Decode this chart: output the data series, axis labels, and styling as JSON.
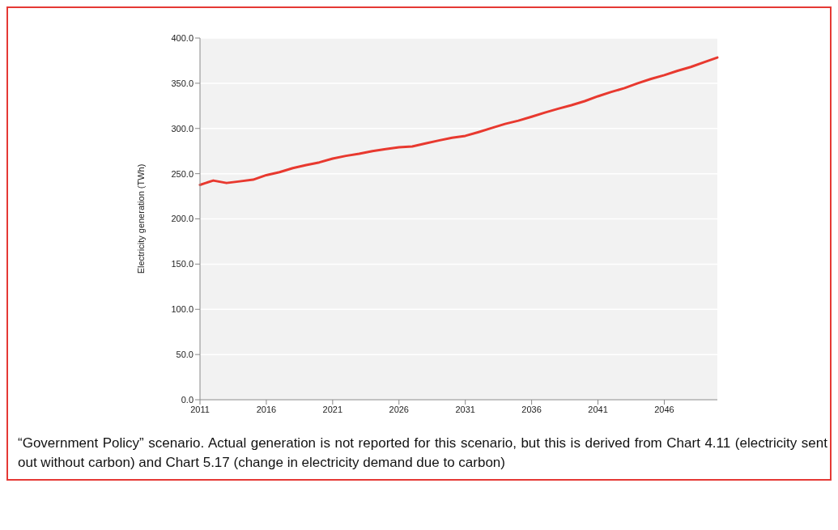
{
  "chart_data": {
    "type": "line",
    "ylabel": "Electricity generation (TWh)",
    "categories": [
      "2011",
      null,
      null,
      null,
      null,
      "2016",
      null,
      null,
      null,
      null,
      "2021",
      null,
      null,
      null,
      null,
      "2026",
      null,
      null,
      null,
      null,
      "2031",
      null,
      null,
      null,
      null,
      "2036",
      null,
      null,
      null,
      null,
      "2041",
      null,
      null,
      null,
      null,
      "2046",
      null,
      null,
      null,
      null
    ],
    "series": [
      {
        "color": "#e8392f",
        "values": [
          237.6,
          242.4,
          239.7,
          241.5,
          243.3,
          248.4,
          251.7,
          256.2,
          259.5,
          262.5,
          266.7,
          269.7,
          272,
          275,
          277.1,
          279.2,
          280.1,
          283.4,
          286.7,
          289.7,
          291.8,
          296,
          300.5,
          305,
          308.6,
          313,
          317.6,
          321.8,
          325.7,
          330.2,
          335.6,
          340.4,
          344.6,
          350,
          354.8,
          359,
          363.8,
          368,
          373.3,
          378.4
        ]
      }
    ],
    "ylim": [
      0,
      400
    ],
    "yticks": [
      {
        "value": 0,
        "label": "0.0"
      },
      {
        "value": 50,
        "label": "50.0"
      },
      {
        "value": 100,
        "label": "100.0"
      },
      {
        "value": 150,
        "label": "150.0"
      },
      {
        "value": 200,
        "label": "200.0"
      },
      {
        "value": 250,
        "label": "250.0"
      },
      {
        "value": 300,
        "label": "300.0"
      },
      {
        "value": 350,
        "label": "350.0"
      },
      {
        "value": 400,
        "label": "400.0"
      }
    ],
    "grid": "y",
    "legend": false,
    "marker": "none",
    "line_style": "solid",
    "annotations": [
      "“Government Policy” scenario. Actual generation is not reported for this scenario, but this is derived from Chart 4.11 (electricity sent out without carbon) and Chart 5.17 (change in electricity demand due to carbon)"
    ]
  }
}
